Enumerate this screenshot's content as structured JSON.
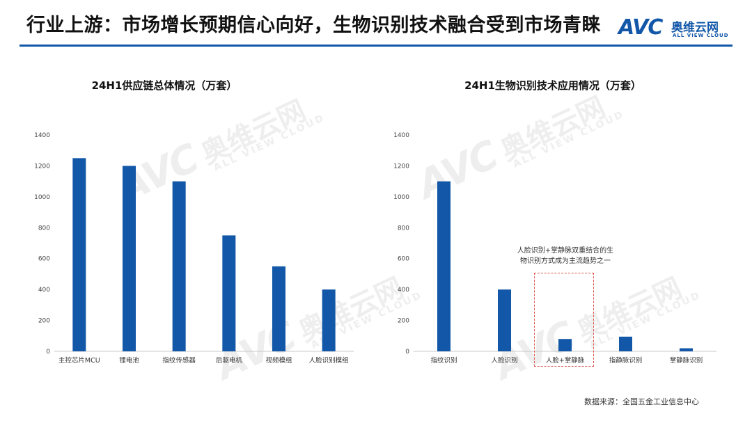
{
  "header": {
    "title": "行业上游：市场增长预期信心向好，生物识别技术融合受到市场青睐",
    "brand_avc": "AVC",
    "brand_cn": "奥维云网",
    "brand_en": "ALL VIEW CLOUD",
    "accent": "#1257a8"
  },
  "watermark": {
    "avc": "AVC",
    "cn": "奥维云网",
    "en": "ALL VIEW CLOUD"
  },
  "chart_data": [
    {
      "type": "bar",
      "title": "24H1供应链总体情况（万套）",
      "categories": [
        "主控芯片MCU",
        "锂电池",
        "指纹传感器",
        "后驱电机",
        "视频模组",
        "人脸识别模组"
      ],
      "values": [
        1250,
        1200,
        1100,
        750,
        550,
        400
      ],
      "yticks": [
        0,
        200,
        400,
        600,
        800,
        1000,
        1200,
        1400
      ],
      "ylim": [
        0,
        1400
      ],
      "grid": false,
      "color": "#1257a8"
    },
    {
      "type": "bar",
      "title": "24H1生物识别技术应用情况（万套）",
      "categories": [
        "指纹识别",
        "人脸识别",
        "人脸+掌静脉",
        "指静脉识别",
        "掌静脉识别"
      ],
      "values": [
        1100,
        400,
        80,
        95,
        20
      ],
      "yticks": [
        0,
        200,
        400,
        600,
        800,
        1000,
        1200,
        1400
      ],
      "ylim": [
        0,
        1400
      ],
      "grid": false,
      "color": "#1257a8",
      "annotation": {
        "line1": "人脸识别+掌静脉双重结合的生",
        "line2": "物识别方式成为主流趋势之一",
        "highlight_category": "人脸+掌静脉",
        "box_color": "#d9534f"
      }
    }
  ],
  "source": "数据来源：全国五金工业信息中心"
}
